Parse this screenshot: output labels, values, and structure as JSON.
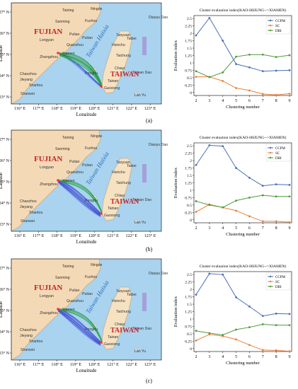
{
  "panels": [
    {
      "caption": "(a)",
      "map": {
        "ylabel": "Latitude",
        "xlabel": "Longitude",
        "lat_ticks": [
          "27° N",
          "26° N",
          "25° N",
          "24° N",
          "23° N"
        ],
        "lon_ticks": [
          "116° E",
          "117° E",
          "118° E",
          "119° E",
          "120° E",
          "121° E",
          "122° E",
          "123° E"
        ],
        "places": [
          "Taining",
          "Ningde",
          "Sanming",
          "Fuzhou",
          "Pulian",
          "Putian",
          "Longyan",
          "Quanzhou",
          "Xiamen",
          "Zhangzhou",
          "Taoyuan",
          "Taibei",
          "Hsinchu",
          "Taichung",
          "Chiayi",
          "Tainan",
          "Gaoxiong",
          "Shantou",
          "Chaozhou",
          "Jieyang",
          "Shanwei",
          "Lan Yu",
          "Penghu",
          "Diaoyu Dao",
          "Taiwan Dao"
        ],
        "region_fujian": "FUJIAN",
        "region_taiwan": "TAIWAN",
        "strait": "Taiwan Haixia"
      },
      "chart_data": {
        "type": "line",
        "title": "Cluster evaluation index(KAO-HSIUNG-->XIAMEN)",
        "xlabel": "Clustering number",
        "ylabel": "Evaluation index",
        "x": [
          2,
          3,
          4,
          5,
          6,
          7,
          8,
          9
        ],
        "xlim": [
          2,
          9
        ],
        "ylim": [
          0,
          2.6
        ],
        "yticks": [
          0,
          0.25,
          0.5,
          0.75,
          1,
          1.25,
          1.5,
          1.75,
          2,
          2.25,
          2.5
        ],
        "ytick_labels": [
          "0",
          "0.25",
          "0.5",
          "0.75",
          "1",
          "1.25",
          "1.5",
          "1.75",
          "2",
          "2.25",
          "2.5"
        ],
        "legend_position": "top-right",
        "series": [
          {
            "name": "CCPM",
            "color": "#4a6fb5",
            "values": [
              1.93,
              2.52,
              1.75,
              0.96,
              0.85,
              0.72,
              0.74,
              0.75
            ]
          },
          {
            "name": "SC",
            "color": "#e8803a",
            "values": [
              0.53,
              0.53,
              0.39,
              0.15,
              0.07,
              -0.05,
              -0.08,
              -0.04
            ]
          },
          {
            "name": "DBI",
            "color": "#4c9a3a",
            "values": [
              0.72,
              0.52,
              0.68,
              1.21,
              1.28,
              1.28,
              1.2,
              1.26
            ]
          }
        ]
      }
    },
    {
      "caption": "(b)",
      "map": {
        "ylabel": "Latitude",
        "xlabel": "Longitude",
        "lat_ticks": [
          "27° N",
          "26° N",
          "25° N",
          "24° N",
          "23° N"
        ],
        "lon_ticks": [
          "116° E",
          "117° E",
          "118° E",
          "119° E",
          "120° E",
          "121° E",
          "122° E",
          "123° E"
        ],
        "places": [
          "Taining",
          "Ningde",
          "Sanming",
          "Fuzhou",
          "Pulian",
          "Putian",
          "Longyan",
          "Quanzhou",
          "Xiamen",
          "Zhangzhou",
          "Taoyuan",
          "Taibei",
          "Hsinchu",
          "Taichung",
          "Chiayi",
          "Tainan",
          "Gaoxiong",
          "Shantou",
          "Chaozhou",
          "Jieyang",
          "Shanwei",
          "Lan Yu",
          "Penghu",
          "Diaoyu Dao",
          "Taiwan Dao"
        ],
        "region_fujian": "FUJIAN",
        "region_taiwan": "TAIWAN",
        "strait": "Taiwan Haixia"
      },
      "chart_data": {
        "type": "line",
        "title": "Cluster evaluation index(KAO-HSIUNG-->XIAMEN)",
        "xlabel": "Clustering number",
        "ylabel": "Evaluation index",
        "x": [
          2,
          3,
          4,
          5,
          6,
          7,
          8,
          9
        ],
        "xlim": [
          2,
          9
        ],
        "ylim": [
          0,
          2.6
        ],
        "yticks": [
          0,
          0.25,
          0.5,
          0.75,
          1,
          1.25,
          1.5,
          1.75,
          2,
          2.25,
          2.5
        ],
        "ytick_labels": [
          "0",
          "0.25",
          "0.5",
          "0.75",
          "1",
          "1.25",
          "1.5",
          "1.75",
          "2",
          "2.25",
          "2.5"
        ],
        "legend_position": "top-right",
        "series": [
          {
            "name": "CCPM",
            "color": "#4a6fb5",
            "values": [
              1.85,
              2.52,
              2.49,
              1.75,
              1.42,
              1.15,
              1.2,
              1.18
            ]
          },
          {
            "name": "SC",
            "color": "#e8803a",
            "values": [
              0.27,
              0.52,
              0.42,
              0.31,
              0.12,
              -0.05,
              -0.05,
              -0.08
            ]
          },
          {
            "name": "DBI",
            "color": "#4c9a3a",
            "values": [
              0.63,
              0.5,
              0.42,
              0.65,
              0.75,
              0.83,
              0.79,
              0.79
            ]
          }
        ]
      }
    },
    {
      "caption": "(c)",
      "map": {
        "ylabel": "Latitude",
        "xlabel": "Longitude",
        "lat_ticks": [
          "27° N",
          "26° N",
          "25° N",
          "24° N",
          "23° N"
        ],
        "lon_ticks": [
          "116° E",
          "117° E",
          "118° E",
          "119° E",
          "120° E",
          "121° E",
          "122° E",
          "123° E"
        ],
        "places": [
          "Taining",
          "Ningde",
          "Sanming",
          "Fuzhou",
          "Pulian",
          "Putian",
          "Longyan",
          "Quanzhou",
          "Xiamen",
          "Zhangzhou",
          "Taoyuan",
          "Taibei",
          "Hsinchu",
          "Taichung",
          "Chiayi",
          "Tainan",
          "Gaoxiong",
          "Shantou",
          "Chaozhou",
          "Jieyang",
          "Shanwei",
          "Lan Yu",
          "Penghu",
          "Diaoyu Dao",
          "Taiwan Dao"
        ],
        "region_fujian": "FUJIAN",
        "region_taiwan": "TAIWAN",
        "strait": "Taiwan Haixia"
      },
      "chart_data": {
        "type": "line",
        "title": "Cluster evaluation index(KAO-HSIUNG-->XIAMEN)",
        "xlabel": "Clustering number",
        "ylabel": "Evaluation index",
        "x": [
          2,
          3,
          4,
          5,
          6,
          7,
          8,
          9
        ],
        "xlim": [
          2,
          9
        ],
        "ylim": [
          0,
          2.6
        ],
        "yticks": [
          0,
          0.25,
          0.5,
          0.75,
          1,
          1.25,
          1.5,
          1.75,
          2,
          2.25,
          2.5
        ],
        "ytick_labels": [
          "0",
          "0.25",
          "0.5",
          "0.75",
          "1",
          "1.25",
          "1.5",
          "1.75",
          "2",
          "2.25",
          "2.5"
        ],
        "legend_position": "top-right",
        "series": [
          {
            "name": "CCPM",
            "color": "#4a6fb5",
            "values": [
              1.82,
              2.53,
              2.5,
              1.73,
              1.42,
              1.1,
              1.18,
              1.17
            ]
          },
          {
            "name": "SC",
            "color": "#e8803a",
            "values": [
              0.27,
              0.48,
              0.42,
              0.31,
              0.12,
              -0.05,
              -0.06,
              -0.09
            ]
          },
          {
            "name": "DBI",
            "color": "#4c9a3a",
            "values": [
              0.6,
              0.52,
              0.46,
              0.64,
              0.72,
              0.82,
              0.79,
              0.79
            ]
          }
        ]
      }
    }
  ]
}
